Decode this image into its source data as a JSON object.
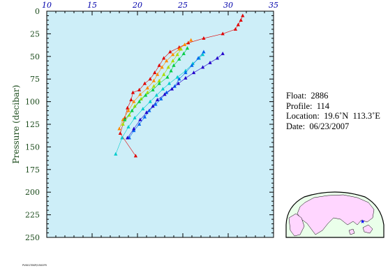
{
  "chart_data": {
    "type": "scatter",
    "ylabel": "Pressure (decibar)",
    "xlim": [
      10,
      35
    ],
    "ylim": [
      0,
      250
    ],
    "y_inverted": true,
    "x_ticks": [
      "10",
      "15",
      "20",
      "25",
      "30",
      "35"
    ],
    "y_ticks": [
      "0",
      "25",
      "50",
      "75",
      "100",
      "125",
      "150",
      "175",
      "200",
      "225",
      "250"
    ],
    "x_tick_values": [
      10,
      15,
      20,
      25,
      30,
      35
    ],
    "y_tick_values": [
      0,
      25,
      50,
      75,
      100,
      125,
      150,
      175,
      200,
      225,
      250
    ],
    "plot_background": "#cdeef8",
    "series": [
      {
        "color": "#e00000",
        "points": [
          [
            19.8,
            160
          ],
          [
            18.1,
            135
          ],
          [
            18.6,
            118
          ],
          [
            18.9,
            107
          ],
          [
            19.3,
            98
          ],
          [
            19.5,
            90
          ],
          [
            20.2,
            87
          ],
          [
            20.8,
            80
          ],
          [
            21.4,
            75
          ],
          [
            21.9,
            68
          ],
          [
            22.4,
            60
          ],
          [
            22.9,
            52
          ],
          [
            23.6,
            45
          ],
          [
            24.6,
            40
          ],
          [
            25.6,
            35
          ],
          [
            27.3,
            30
          ],
          [
            29.4,
            25
          ],
          [
            30.8,
            20
          ],
          [
            31.1,
            15
          ],
          [
            31.4,
            10
          ],
          [
            31.6,
            5
          ]
        ]
      },
      {
        "color": "#ff8c00",
        "points": [
          [
            18.0,
            130
          ],
          [
            18.4,
            120
          ],
          [
            19.0,
            110
          ],
          [
            19.6,
            100
          ],
          [
            20.3,
            92
          ],
          [
            21.1,
            85
          ],
          [
            21.8,
            77
          ],
          [
            22.2,
            70
          ],
          [
            22.7,
            62
          ],
          [
            23.2,
            55
          ],
          [
            23.9,
            48
          ],
          [
            24.6,
            42
          ],
          [
            25.2,
            37
          ],
          [
            25.9,
            32
          ]
        ]
      },
      {
        "color": "#aadd00",
        "points": [
          [
            18.4,
            125
          ],
          [
            19.1,
            115
          ],
          [
            19.7,
            105
          ],
          [
            20.4,
            97
          ],
          [
            21.1,
            90
          ],
          [
            21.8,
            83
          ],
          [
            22.4,
            77
          ],
          [
            22.9,
            70
          ],
          [
            23.4,
            62
          ],
          [
            23.9,
            55
          ],
          [
            24.4,
            48
          ],
          [
            24.8,
            42
          ]
        ]
      },
      {
        "color": "#00cc44",
        "points": [
          [
            18.6,
            120
          ],
          [
            19.4,
            110
          ],
          [
            20.2,
            100
          ],
          [
            20.9,
            93
          ],
          [
            21.7,
            87
          ],
          [
            22.4,
            80
          ],
          [
            23.3,
            73
          ],
          [
            23.7,
            66
          ],
          [
            24.0,
            60
          ],
          [
            24.6,
            53
          ],
          [
            25.1,
            47
          ],
          [
            25.5,
            41
          ]
        ]
      },
      {
        "color": "#00cccc",
        "points": [
          [
            17.6,
            158
          ],
          [
            18.3,
            140
          ],
          [
            19.0,
            128
          ],
          [
            19.7,
            118
          ],
          [
            20.6,
            108
          ],
          [
            21.4,
            100
          ],
          [
            22.1,
            93
          ],
          [
            22.8,
            86
          ],
          [
            23.5,
            80
          ],
          [
            24.4,
            73
          ],
          [
            25.3,
            66
          ],
          [
            26.1,
            58
          ],
          [
            26.8,
            52
          ],
          [
            27.2,
            48
          ]
        ]
      },
      {
        "color": "#0066ee",
        "points": [
          [
            19.1,
            140
          ],
          [
            19.6,
            132
          ],
          [
            20.2,
            125
          ],
          [
            20.8,
            117
          ],
          [
            21.3,
            110
          ],
          [
            22.0,
            103
          ],
          [
            22.6,
            97
          ],
          [
            23.2,
            90
          ],
          [
            24.1,
            83
          ],
          [
            24.6,
            75
          ],
          [
            25.3,
            68
          ],
          [
            26.0,
            60
          ],
          [
            26.7,
            52
          ],
          [
            27.3,
            45
          ]
        ]
      },
      {
        "color": "#2200cc",
        "points": [
          [
            18.9,
            140
          ],
          [
            19.6,
            130
          ],
          [
            20.3,
            120
          ],
          [
            21.0,
            112
          ],
          [
            21.7,
            105
          ],
          [
            22.2,
            98
          ],
          [
            23.0,
            92
          ],
          [
            23.8,
            86
          ],
          [
            24.5,
            80
          ],
          [
            25.3,
            74
          ],
          [
            26.2,
            68
          ],
          [
            27.2,
            62
          ],
          [
            28.0,
            57
          ],
          [
            28.8,
            52
          ],
          [
            29.4,
            47
          ]
        ]
      }
    ]
  },
  "info": {
    "float": "Float:  2886",
    "profile": "Profile:  114",
    "location": "Location:  19.6˚N  113.3˚E",
    "date": "Date:  06/23/2007"
  },
  "map": {
    "land_color": "#ffd6ff",
    "ocean_color": "#eaffea",
    "marker_color": "#0000ff"
  },
  "footer": {
    "code": "PV6017BSP/U500FR"
  }
}
